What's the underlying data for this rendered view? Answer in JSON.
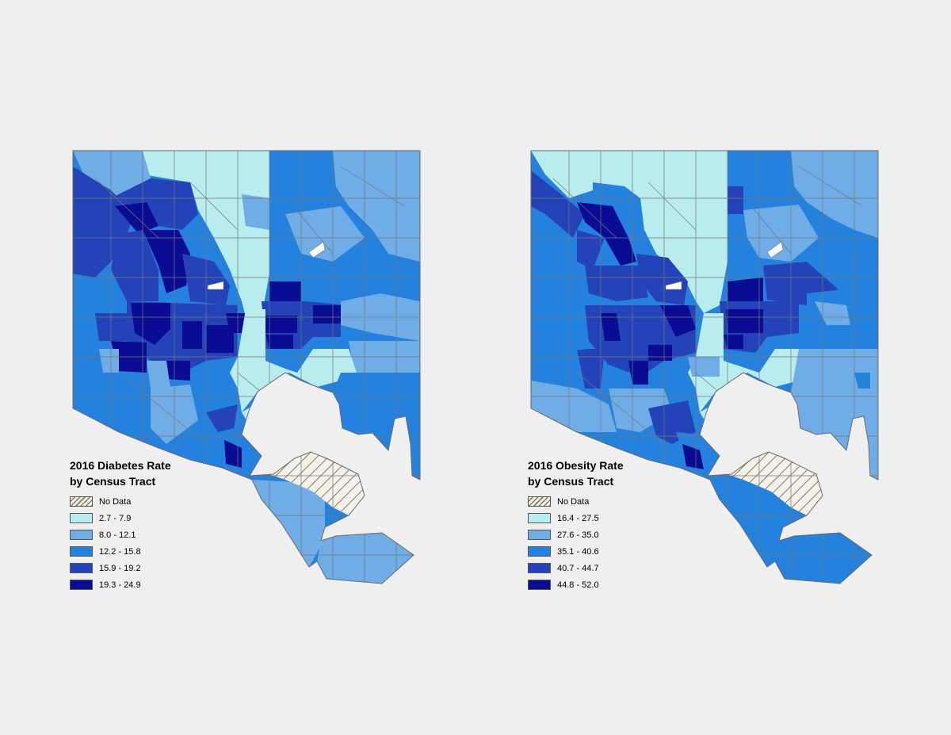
{
  "maps": [
    {
      "id": "diabetes",
      "legend": {
        "title_line1": "2016 Diabetes Rate",
        "title_line2": "by Census Tract",
        "items": [
          {
            "label": "No Data",
            "pattern": "hatch"
          },
          {
            "label": "2.7 - 7.9",
            "color": "#b8ecee"
          },
          {
            "label": "8.0 - 12.1",
            "color": "#70ade6"
          },
          {
            "label": "12.2 - 15.8",
            "color": "#2481dd"
          },
          {
            "label": "15.9 - 19.2",
            "color": "#2443b8"
          },
          {
            "label": "19.3 - 24.9",
            "color": "#0a0c93"
          }
        ]
      }
    },
    {
      "id": "obesity",
      "legend": {
        "title_line1": "2016 Obesity Rate",
        "title_line2": "by Census Tract",
        "items": [
          {
            "label": "No Data",
            "pattern": "hatch"
          },
          {
            "label": "16.4 - 27.5",
            "color": "#b8ecee"
          },
          {
            "label": "27.6 - 35.0",
            "color": "#70ade6"
          },
          {
            "label": "35.1 - 40.6",
            "color": "#2481dd"
          },
          {
            "label": "40.7 - 44.7",
            "color": "#2443b8"
          },
          {
            "label": "44.8 - 52.0",
            "color": "#0a0c93"
          }
        ]
      }
    }
  ],
  "colors": {
    "background": "#efefef",
    "boundary": "#777777",
    "class1": "#b8ecee",
    "class2": "#70ade6",
    "class3": "#2481dd",
    "class4": "#2443b8",
    "class5": "#0a0c93"
  }
}
